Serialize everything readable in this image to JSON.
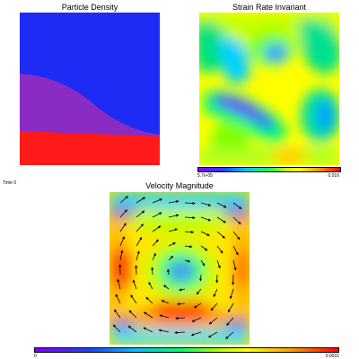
{
  "panels": {
    "particle_density": {
      "title": "Particle Density"
    },
    "strain_rate": {
      "title": "Strain Rate Invariant",
      "colorbar_min": "5.7e-05",
      "colorbar_max": "0.016"
    },
    "velocity": {
      "title": "Velocity Magnitude",
      "colorbar_min": "0",
      "colorbar_max": "0.0031"
    }
  },
  "time_label": "Time 0",
  "colors": {
    "blue_layer": "#1e2bf5",
    "purple_layer": "#8a2cc4",
    "red_layer": "#ff1a1a",
    "hot": "#ff1a00",
    "cold": "#8a00f0"
  }
}
